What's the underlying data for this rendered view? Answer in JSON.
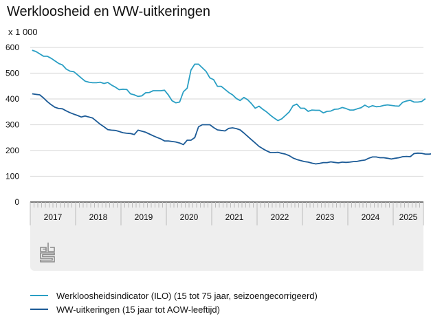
{
  "title": "Werkloosheid en WW-uitkeringen",
  "unit_label": "x 1 000",
  "colors": {
    "ilo": "#2a9fc4",
    "ww": "#1b5a96",
    "grid": "#dddddd",
    "axis_band": "#eeeeee"
  },
  "logo_text": "cbs",
  "chart_data": {
    "type": "line",
    "title": "Werkloosheid en WW-uitkeringen",
    "ylabel": "x 1 000",
    "xlabel": "",
    "ylim": [
      0,
      600
    ],
    "yticks": [
      0,
      100,
      200,
      300,
      400,
      500,
      600
    ],
    "grid": true,
    "legend_position": "bottom",
    "x_start": "2017-01",
    "x_frequency": "monthly",
    "x_tick_labels": [
      "2017",
      "2018",
      "2019",
      "2020",
      "2021",
      "2022",
      "2023",
      "2024",
      "2025"
    ],
    "series": [
      {
        "name": "Werkloosheidsindicator (ILO) (15 tot 75 jaar, seizoengecorrigeerd)",
        "values": [
          589,
          584,
          575,
          566,
          566,
          558,
          548,
          538,
          532,
          516,
          508,
          506,
          494,
          481,
          469,
          465,
          463,
          463,
          465,
          460,
          464,
          454,
          446,
          436,
          438,
          437,
          420,
          416,
          410,
          412,
          424,
          425,
          432,
          432,
          432,
          434,
          416,
          393,
          385,
          388,
          428,
          442,
          512,
          535,
          535,
          521,
          507,
          482,
          475,
          449,
          449,
          437,
          425,
          416,
          402,
          394,
          406,
          397,
          382,
          364,
          372,
          360,
          350,
          337,
          326,
          316,
          323,
          336,
          350,
          374,
          380,
          364,
          364,
          352,
          357,
          356,
          356,
          346,
          352,
          353,
          360,
          361,
          367,
          363,
          357,
          357,
          362,
          366,
          376,
          368,
          374,
          370,
          371,
          375,
          377,
          375,
          373,
          372,
          387,
          392,
          395,
          388,
          388,
          390,
          401
        ]
      },
      {
        "name": "WW-uitkeringen (15 jaar tot AOW-leeftijd)",
        "values": [
          420,
          418,
          416,
          404,
          390,
          378,
          368,
          363,
          362,
          354,
          347,
          341,
          336,
          330,
          334,
          330,
          326,
          314,
          302,
          292,
          281,
          279,
          278,
          274,
          269,
          267,
          266,
          262,
          279,
          275,
          271,
          264,
          257,
          251,
          245,
          237,
          237,
          235,
          233,
          229,
          223,
          240,
          240,
          250,
          292,
          300,
          300,
          300,
          289,
          280,
          278,
          276,
          286,
          288,
          285,
          280,
          268,
          255,
          242,
          229,
          216,
          207,
          199,
          192,
          192,
          193,
          189,
          186,
          180,
          171,
          165,
          161,
          157,
          155,
          151,
          148,
          150,
          153,
          153,
          156,
          154,
          152,
          155,
          154,
          155,
          157,
          158,
          161,
          163,
          170,
          175,
          175,
          172,
          172,
          170,
          167,
          170,
          172,
          176,
          177,
          176,
          188,
          190,
          189,
          186,
          186,
          188
        ]
      }
    ]
  }
}
